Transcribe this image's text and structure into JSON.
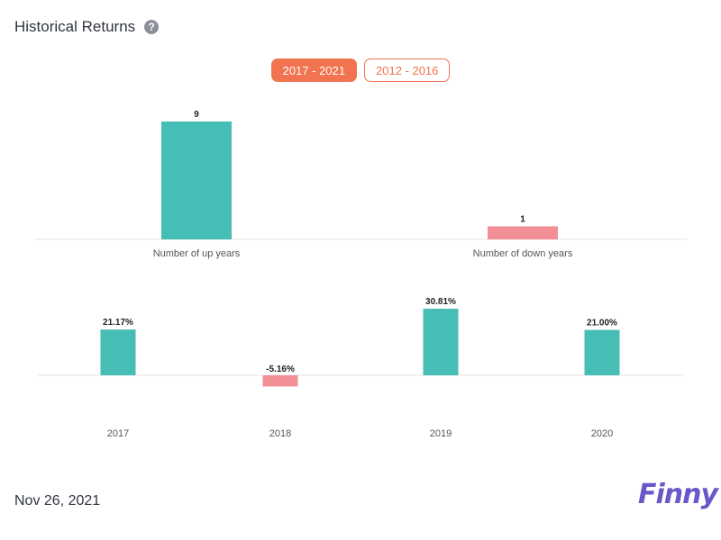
{
  "header": {
    "title": "Historical Returns",
    "help_icon": "question-circle-icon"
  },
  "tabs": [
    {
      "label": "2017 - 2021",
      "active": true
    },
    {
      "label": "2012 - 2016",
      "active": false
    }
  ],
  "footer": {
    "date": "Nov 26, 2021",
    "brand": "Finny"
  },
  "colors": {
    "accent": "#f2734f",
    "up": "#46bdb5",
    "down": "#f28e96",
    "brand": "#6b57c9"
  },
  "chart_data": [
    {
      "type": "bar",
      "categories": [
        "Number of up years",
        "Number of down years"
      ],
      "values": [
        9,
        1
      ],
      "data_labels": [
        "9",
        "1"
      ],
      "ylim": [
        0,
        9
      ]
    },
    {
      "type": "bar",
      "categories": [
        "2017",
        "2018",
        "2019",
        "2020"
      ],
      "values": [
        21.17,
        -5.16,
        30.81,
        21.0
      ],
      "data_labels": [
        "21.17%",
        "-5.16%",
        "30.81%",
        "21.00%"
      ],
      "ylim": [
        -5.16,
        30.81
      ]
    }
  ]
}
